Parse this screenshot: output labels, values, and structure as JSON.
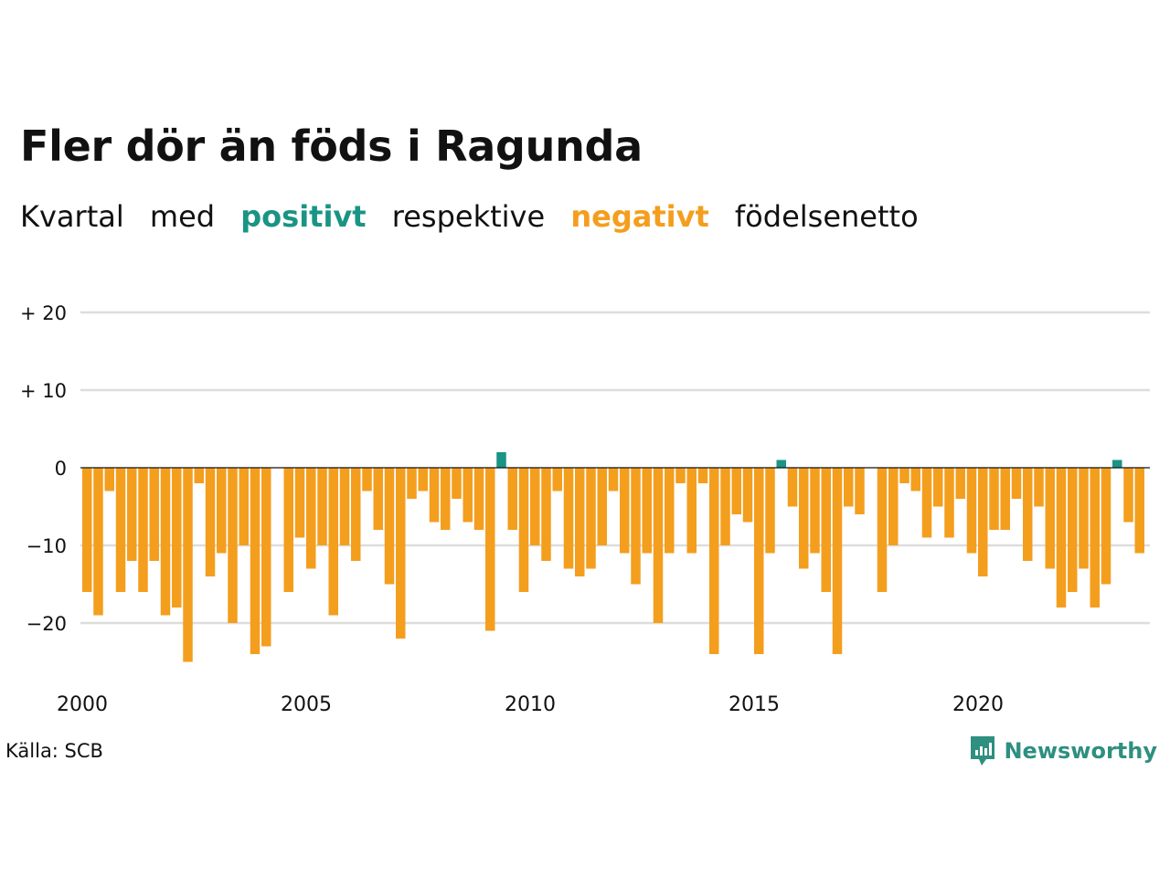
{
  "title": "Fler dör än föds i Ragunda",
  "subtitle": {
    "w1": "Kvartal",
    "w2": "med",
    "positive": "positivt",
    "w3": "respektive",
    "negative": "negativt",
    "w4": "födelsenetto"
  },
  "colors": {
    "positive": "#1a9484",
    "negative": "#f49e1e",
    "grid": "#dddddd",
    "zero": "#111111"
  },
  "source": "Källa: SCB",
  "brand": {
    "name": "Newsworthy",
    "icon": "bar-chart-speech-bubble-icon",
    "color": "#2f8f80"
  },
  "chart_data": {
    "type": "bar",
    "x_labels": [
      "2000",
      "2005",
      "2010",
      "2015",
      "2020"
    ],
    "y_ticks": [
      {
        "value": 20,
        "label": "+ 20"
      },
      {
        "value": 10,
        "label": "+ 10"
      },
      {
        "value": 0,
        "label": "0"
      },
      {
        "value": -10,
        "label": "−10"
      },
      {
        "value": -20,
        "label": "−20"
      }
    ],
    "ylim": [
      -27,
      21
    ],
    "start": "2000 Q1",
    "period": "quarter",
    "values": [
      -16,
      -19,
      -3,
      -16,
      -12,
      -16,
      -12,
      -19,
      -18,
      -25,
      -2,
      -14,
      -11,
      -20,
      -10,
      -24,
      -23,
      0,
      -16,
      -9,
      -13,
      -10,
      -19,
      -10,
      -12,
      -3,
      -8,
      -15,
      -22,
      -4,
      -3,
      -7,
      -8,
      -4,
      -7,
      -8,
      -21,
      2,
      -8,
      -16,
      -10,
      -12,
      -3,
      -13,
      -14,
      -13,
      -10,
      -3,
      -11,
      -15,
      -11,
      -20,
      -11,
      -2,
      -11,
      -2,
      -24,
      -10,
      -6,
      -7,
      -24,
      -11,
      1,
      -5,
      -13,
      -11,
      -16,
      -24,
      -5,
      -6,
      0,
      -16,
      -10,
      -2,
      -3,
      -9,
      -5,
      -9,
      -4,
      -11,
      -14,
      -8,
      -8,
      -4,
      -12,
      -5,
      -13,
      -18,
      -16,
      -13,
      -18,
      -15,
      1,
      -7,
      -11
    ]
  }
}
